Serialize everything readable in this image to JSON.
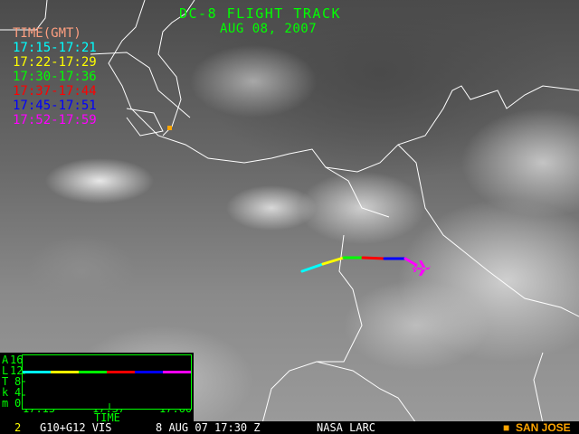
{
  "header": {
    "title": "DC-8 FLIGHT TRACK",
    "date": "AUG 08, 2007"
  },
  "legend": {
    "title": "TIME(GMT)",
    "items": [
      {
        "label": "17:15-17:21",
        "color": "#00ffff"
      },
      {
        "label": "17:22-17:29",
        "color": "#ffff00"
      },
      {
        "label": "17:30-17:36",
        "color": "#00ff00"
      },
      {
        "label": "17:37-17:44",
        "color": "#ff0000"
      },
      {
        "label": "17:45-17:51",
        "color": "#0000ff"
      },
      {
        "label": "17:52-17:59",
        "color": "#ff00ff"
      }
    ]
  },
  "altitude_plot": {
    "ylabel_letters": [
      "A",
      "L",
      "T",
      "k",
      "m"
    ],
    "yticks": [
      "16",
      "12",
      "8",
      "4",
      "0"
    ],
    "xticks": [
      "17:15",
      "17:37",
      "17:60"
    ],
    "xlabel": "TIME",
    "altitude_km": 11.5
  },
  "marker": {
    "label": "SAN JOSE",
    "color": "#ffa500"
  },
  "footer": {
    "frame": "2",
    "sensor": "G10+G12 VIS",
    "datetime": "8 AUG 07 17:30 Z",
    "source": "NASA LARC",
    "station": "SAN JOSE"
  },
  "icons": {
    "aircraft": "airplane-icon",
    "station": "square-marker-icon"
  }
}
